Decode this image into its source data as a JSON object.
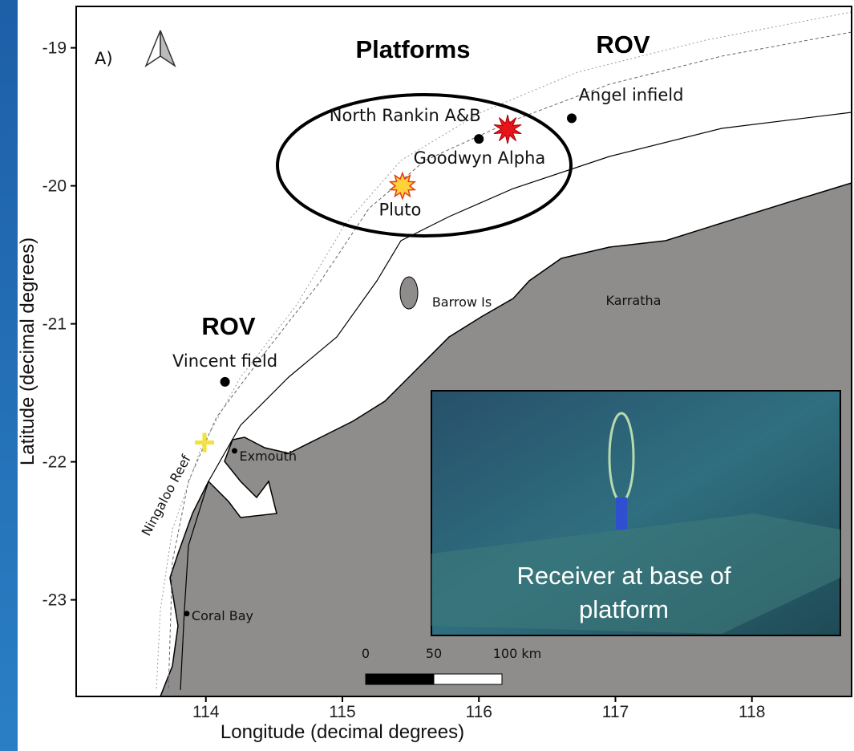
{
  "panel_label": "A)",
  "map": {
    "xlim": [
      113.05,
      118.73
    ],
    "ylim": [
      -23.7,
      -18.7
    ],
    "xticks": [
      114,
      115,
      116,
      117,
      118
    ],
    "yticks": [
      -19,
      -20,
      -21,
      -22,
      -23
    ],
    "xlabel": "Longitude (decimal degrees)",
    "ylabel": "Latitude (decimal degrees)",
    "places": [
      {
        "label": "North Rankin A&B",
        "lon": 116.0,
        "lat": -19.66,
        "marker": "dot"
      },
      {
        "label": "Angel infield",
        "lon": 116.68,
        "lat": -19.51,
        "marker": "dot"
      },
      {
        "label": "Goodwyn Alpha",
        "lon": 116.21,
        "lat": -19.59,
        "marker": "red-star"
      },
      {
        "label": "Pluto",
        "lon": 115.44,
        "lat": -20.0,
        "marker": "orange-star"
      },
      {
        "label": "Vincent field",
        "lon": 114.14,
        "lat": -21.42,
        "marker": "dot"
      },
      {
        "label": "Exmouth",
        "lon": 114.21,
        "lat": -21.92,
        "marker": "small-dot"
      },
      {
        "label": "Coral Bay",
        "lon": 113.86,
        "lat": -23.1,
        "marker": "small-dot"
      },
      {
        "lon": 113.99,
        "lat": -21.86,
        "marker": "cross"
      }
    ],
    "labels": [
      "Barrow Is",
      "Karratha",
      "Ningaloo Reef"
    ],
    "groups": [
      "Platforms",
      "ROV",
      "ROV"
    ],
    "scale_bar": [
      "0",
      "50",
      "100 km"
    ],
    "photo_caption": [
      "Receiver at base of",
      "platform"
    ]
  }
}
